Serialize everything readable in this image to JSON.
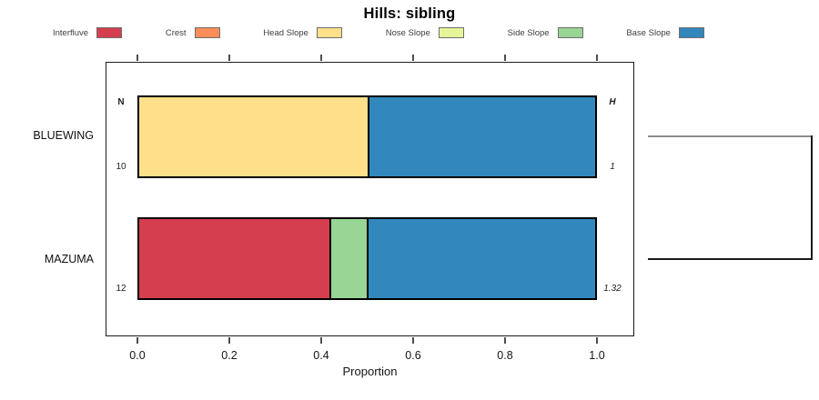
{
  "chart_data": {
    "type": "bar",
    "variant": "horizontal-stacked-proportion",
    "title": "Hills: sibling",
    "xlabel": "Proportion",
    "xlim": [
      0,
      1
    ],
    "xtick_labels": [
      "0.0",
      "0.2",
      "0.4",
      "0.6",
      "0.8",
      "1.0"
    ],
    "xtick_values": [
      0,
      0.2,
      0.4,
      0.6,
      0.8,
      1.0
    ],
    "grid": false,
    "legend_position": "top",
    "legend": [
      {
        "label": "Interfluve",
        "color": "#D53E4F"
      },
      {
        "label": "Crest",
        "color": "#FC8D59"
      },
      {
        "label": "Head Slope",
        "color": "#FEE08B"
      },
      {
        "label": "Nose Slope",
        "color": "#E6F598"
      },
      {
        "label": "Side Slope",
        "color": "#99D594"
      },
      {
        "label": "Base Slope",
        "color": "#3288BD"
      }
    ],
    "column_headers": {
      "left": "N",
      "right": "H"
    },
    "rows": [
      {
        "name": "BLUEWING",
        "n": "10",
        "h": "1",
        "segments": [
          {
            "category": "Head Slope",
            "value": 0.5
          },
          {
            "category": "Base Slope",
            "value": 0.5
          }
        ]
      },
      {
        "name": "MAZUMA",
        "n": "12",
        "h": "1.32",
        "segments": [
          {
            "category": "Interfluve",
            "value": 0.41667
          },
          {
            "category": "Side Slope",
            "value": 0.08333
          },
          {
            "category": "Base Slope",
            "value": 0.5
          }
        ]
      }
    ],
    "sibling_bracket": {
      "connects": [
        "BLUEWING",
        "MAZUMA"
      ]
    }
  }
}
